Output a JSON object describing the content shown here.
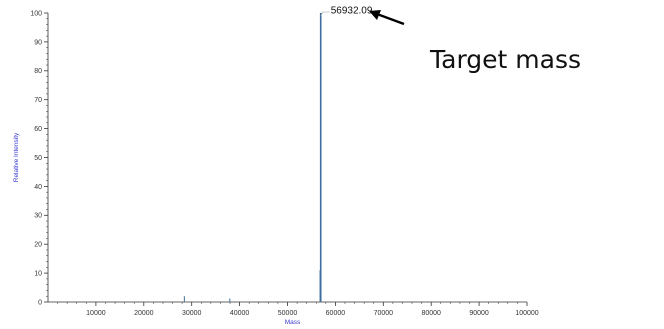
{
  "chart_data": {
    "type": "line",
    "title": "",
    "xlabel": "Mass",
    "ylabel": "Relative Intensity",
    "xlim": [
      0,
      100000
    ],
    "ylim": [
      0,
      100
    ],
    "x_ticks": [
      10000,
      20000,
      30000,
      40000,
      50000,
      60000,
      70000,
      80000,
      90000,
      100000
    ],
    "y_ticks": [
      0,
      10,
      20,
      30,
      40,
      50,
      60,
      70,
      80,
      90,
      100
    ],
    "grid": false,
    "colors": {
      "peaks": "#3c6e9e",
      "axis_title": "#3a3ad6",
      "axes": "#333333"
    },
    "peaks": [
      {
        "x": 28466,
        "y": 2
      },
      {
        "x": 37955,
        "y": 1.2
      },
      {
        "x": 56800,
        "y": 11
      },
      {
        "x": 56932.09,
        "y": 100
      }
    ],
    "peak_label": "56932.09",
    "annotation": "Target mass"
  }
}
